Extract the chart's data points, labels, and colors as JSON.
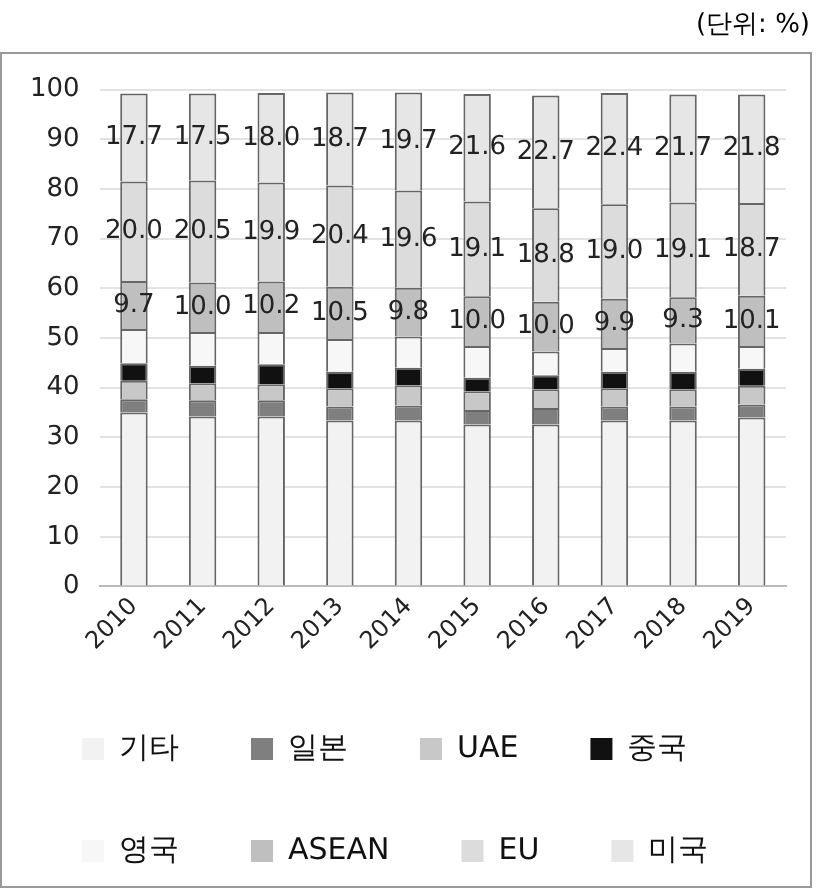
{
  "chart_data": {
    "type": "bar",
    "stacked": true,
    "annotations": [
      "(단위: %)"
    ],
    "categories": [
      "2010",
      "2011",
      "2012",
      "2013",
      "2014",
      "2015",
      "2016",
      "2017",
      "2018",
      "2019"
    ],
    "ylim": [
      0,
      100
    ],
    "yticks": [
      0,
      10,
      20,
      30,
      40,
      50,
      60,
      70,
      80,
      90,
      100
    ],
    "grid": "y",
    "legend": "bottom",
    "series": [
      {
        "name": "기타",
        "color": "#f2f2f2",
        "values": [
          35.0,
          34.2,
          34.2,
          33.4,
          33.4,
          32.6,
          32.6,
          33.4,
          33.4,
          34.0
        ]
      },
      {
        "name": "일본",
        "color": "#7f7f7f",
        "values": [
          2.7,
          3.3,
          3.3,
          2.8,
          3.0,
          2.9,
          3.3,
          2.8,
          2.8,
          2.6
        ]
      },
      {
        "name": "UAE",
        "color": "#c8c8c8",
        "values": [
          3.7,
          3.4,
          3.2,
          3.7,
          4.1,
          3.8,
          3.8,
          3.7,
          3.5,
          3.8
        ]
      },
      {
        "name": "중국",
        "color": "#111111",
        "values": [
          3.5,
          3.5,
          4.0,
          3.3,
          3.5,
          2.7,
          2.8,
          3.3,
          3.5,
          3.4
        ]
      },
      {
        "name": "영국",
        "color": "#f7f7f7",
        "values": [
          6.9,
          6.8,
          6.5,
          6.6,
          6.3,
          6.4,
          4.8,
          4.8,
          5.7,
          4.6
        ]
      },
      {
        "name": "ASEAN",
        "color": "#bfbfbf",
        "values": [
          9.7,
          10.0,
          10.2,
          10.5,
          9.8,
          10.0,
          10.0,
          9.9,
          9.3,
          10.1
        ],
        "value_labels": [
          "9.7",
          "10.0",
          "10.2",
          "10.5",
          "9.8",
          "10.0",
          "10.0",
          "9.9",
          "9.3",
          "10.1"
        ]
      },
      {
        "name": "EU",
        "color": "#dcdcdc",
        "values": [
          20.0,
          20.5,
          19.9,
          20.4,
          19.6,
          19.1,
          18.8,
          19.0,
          19.1,
          18.7
        ],
        "value_labels": [
          "20.0",
          "20.5",
          "19.9",
          "20.4",
          "19.6",
          "19.1",
          "18.8",
          "19.0",
          "19.1",
          "18.7"
        ]
      },
      {
        "name": "미국",
        "color": "#e6e6e6",
        "values": [
          17.7,
          17.5,
          18.0,
          18.7,
          19.7,
          21.6,
          22.7,
          22.4,
          21.7,
          21.8
        ],
        "value_labels": [
          "17.7",
          "17.5",
          "18.0",
          "18.7",
          "19.7",
          "21.6",
          "22.7",
          "22.4",
          "21.7",
          "21.8"
        ]
      }
    ]
  }
}
